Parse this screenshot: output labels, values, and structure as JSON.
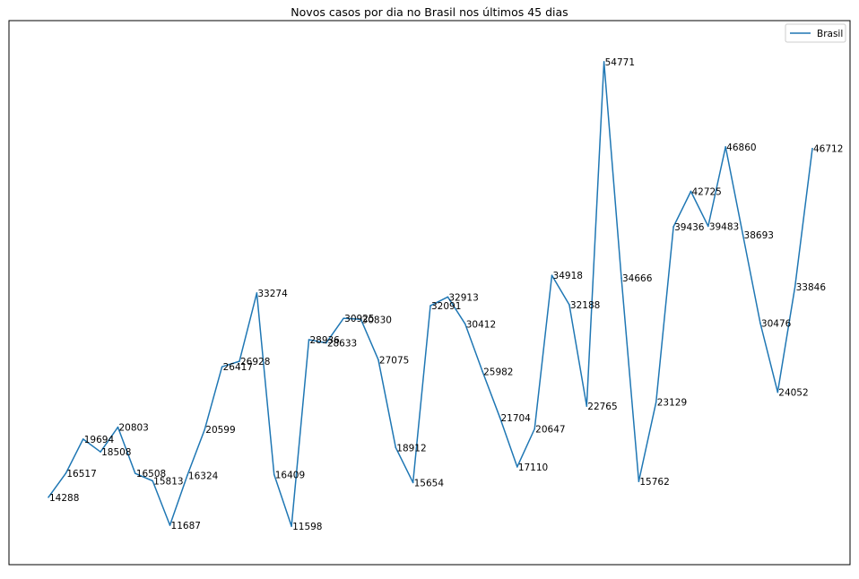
{
  "chart_data": {
    "type": "line",
    "title": "Novos casos por dia no Brasil nos últimos 45 dias",
    "xlabel": "",
    "ylabel": "",
    "legend": {
      "position": "top-right",
      "entries": [
        "Brasil"
      ]
    },
    "grid": false,
    "axes_ticks_visible": false,
    "series": [
      {
        "name": "Brasil",
        "color": "#1f77b4",
        "values": [
          14288,
          16517,
          19694,
          18508,
          20803,
          16508,
          15813,
          11687,
          16324,
          20599,
          26417,
          26928,
          33274,
          16409,
          11598,
          28936,
          28633,
          30925,
          30830,
          27075,
          18912,
          15654,
          32091,
          32913,
          30412,
          25982,
          21704,
          17110,
          20647,
          34918,
          32188,
          22765,
          54771,
          34666,
          15762,
          23129,
          39436,
          42725,
          39483,
          46860,
          38693,
          30476,
          24052,
          33846,
          46712
        ],
        "labels": [
          "14288",
          "16517",
          "19694",
          "18508",
          "20803",
          "16508",
          "15813",
          "11687",
          "16324",
          "20599",
          "26417",
          "26928",
          "33274",
          "16409",
          "11598",
          "28936",
          "28633",
          "30925",
          "30830",
          "27075",
          "18912",
          "15654",
          "32091",
          "32913",
          "30412",
          "25982",
          "21704",
          "17110",
          "20647",
          "34918",
          "32188",
          "22765",
          "54771",
          "34666",
          "15762",
          "23129",
          "39436",
          "42725",
          "39483",
          "46860",
          "38693",
          "30476",
          "24052",
          "33846",
          "46712"
        ]
      }
    ],
    "ylim": [
      9440,
      56929
    ]
  }
}
